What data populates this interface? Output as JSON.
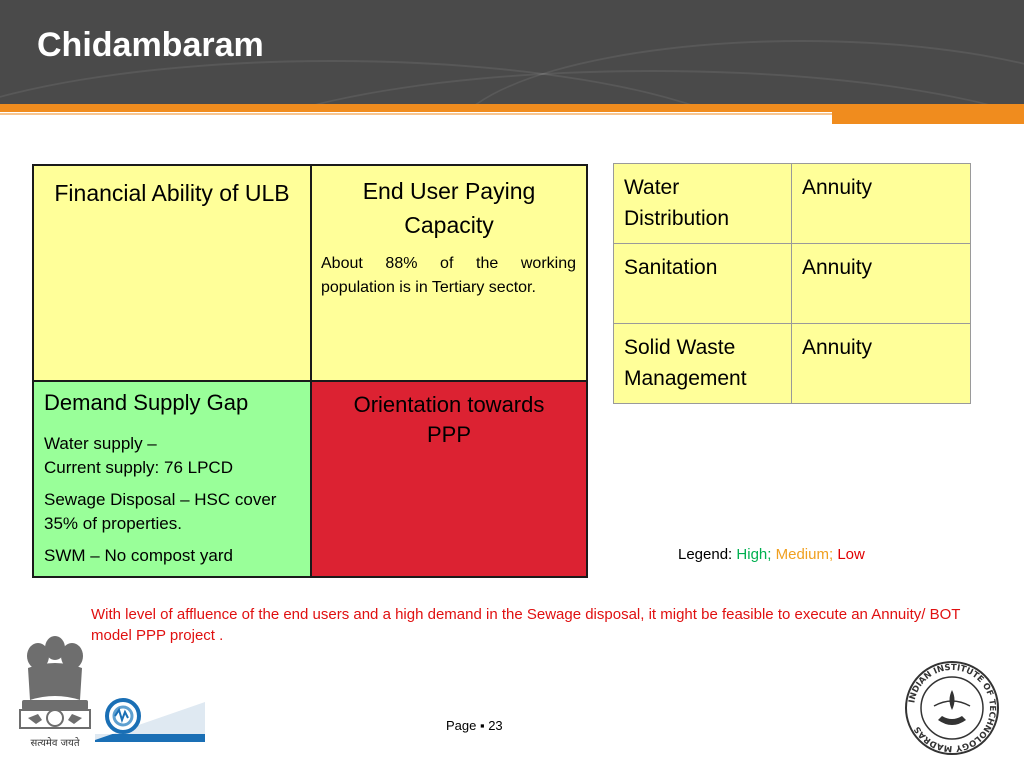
{
  "header": {
    "title": "Chidambaram"
  },
  "quadrants": {
    "financial_ability": {
      "heading": "Financial Ability of ULB"
    },
    "end_user": {
      "heading": "End User Paying Capacity",
      "body": "About 88% of the working population is in Tertiary sector."
    },
    "demand_supply": {
      "heading": "Demand Supply Gap",
      "lines": [
        "Water supply –",
        "Current supply: 76 LPCD",
        "Sewage Disposal – HSC cover 35% of properties.",
        "SWM – No compost yard"
      ]
    },
    "orientation": {
      "heading": "Orientation towards PPP"
    }
  },
  "colors": {
    "high": "#99ff99",
    "medium": "#ffff99",
    "low": "#dc2232",
    "accent": "#f08c1e"
  },
  "sector_table": {
    "rows": [
      {
        "sector": "Water Distribution",
        "model": "Annuity"
      },
      {
        "sector": "Sanitation",
        "model": "Annuity"
      },
      {
        "sector": "Solid Waste Management",
        "model": "Annuity"
      }
    ]
  },
  "legend": {
    "label": "Legend:",
    "high": "High;",
    "medium": "Medium;",
    "low": "Low"
  },
  "note": "With level of affluence of the end users and a high demand in the Sewage disposal, it  might be feasible to execute an Annuity/ BOT model PPP project .",
  "footer": {
    "page_label": "Page ▪ 23",
    "emblem_motto": "सत्यमेव जयते",
    "iit_seal_text": "INDIAN INSTITUTE OF TECHNOLOGY MADRAS"
  }
}
